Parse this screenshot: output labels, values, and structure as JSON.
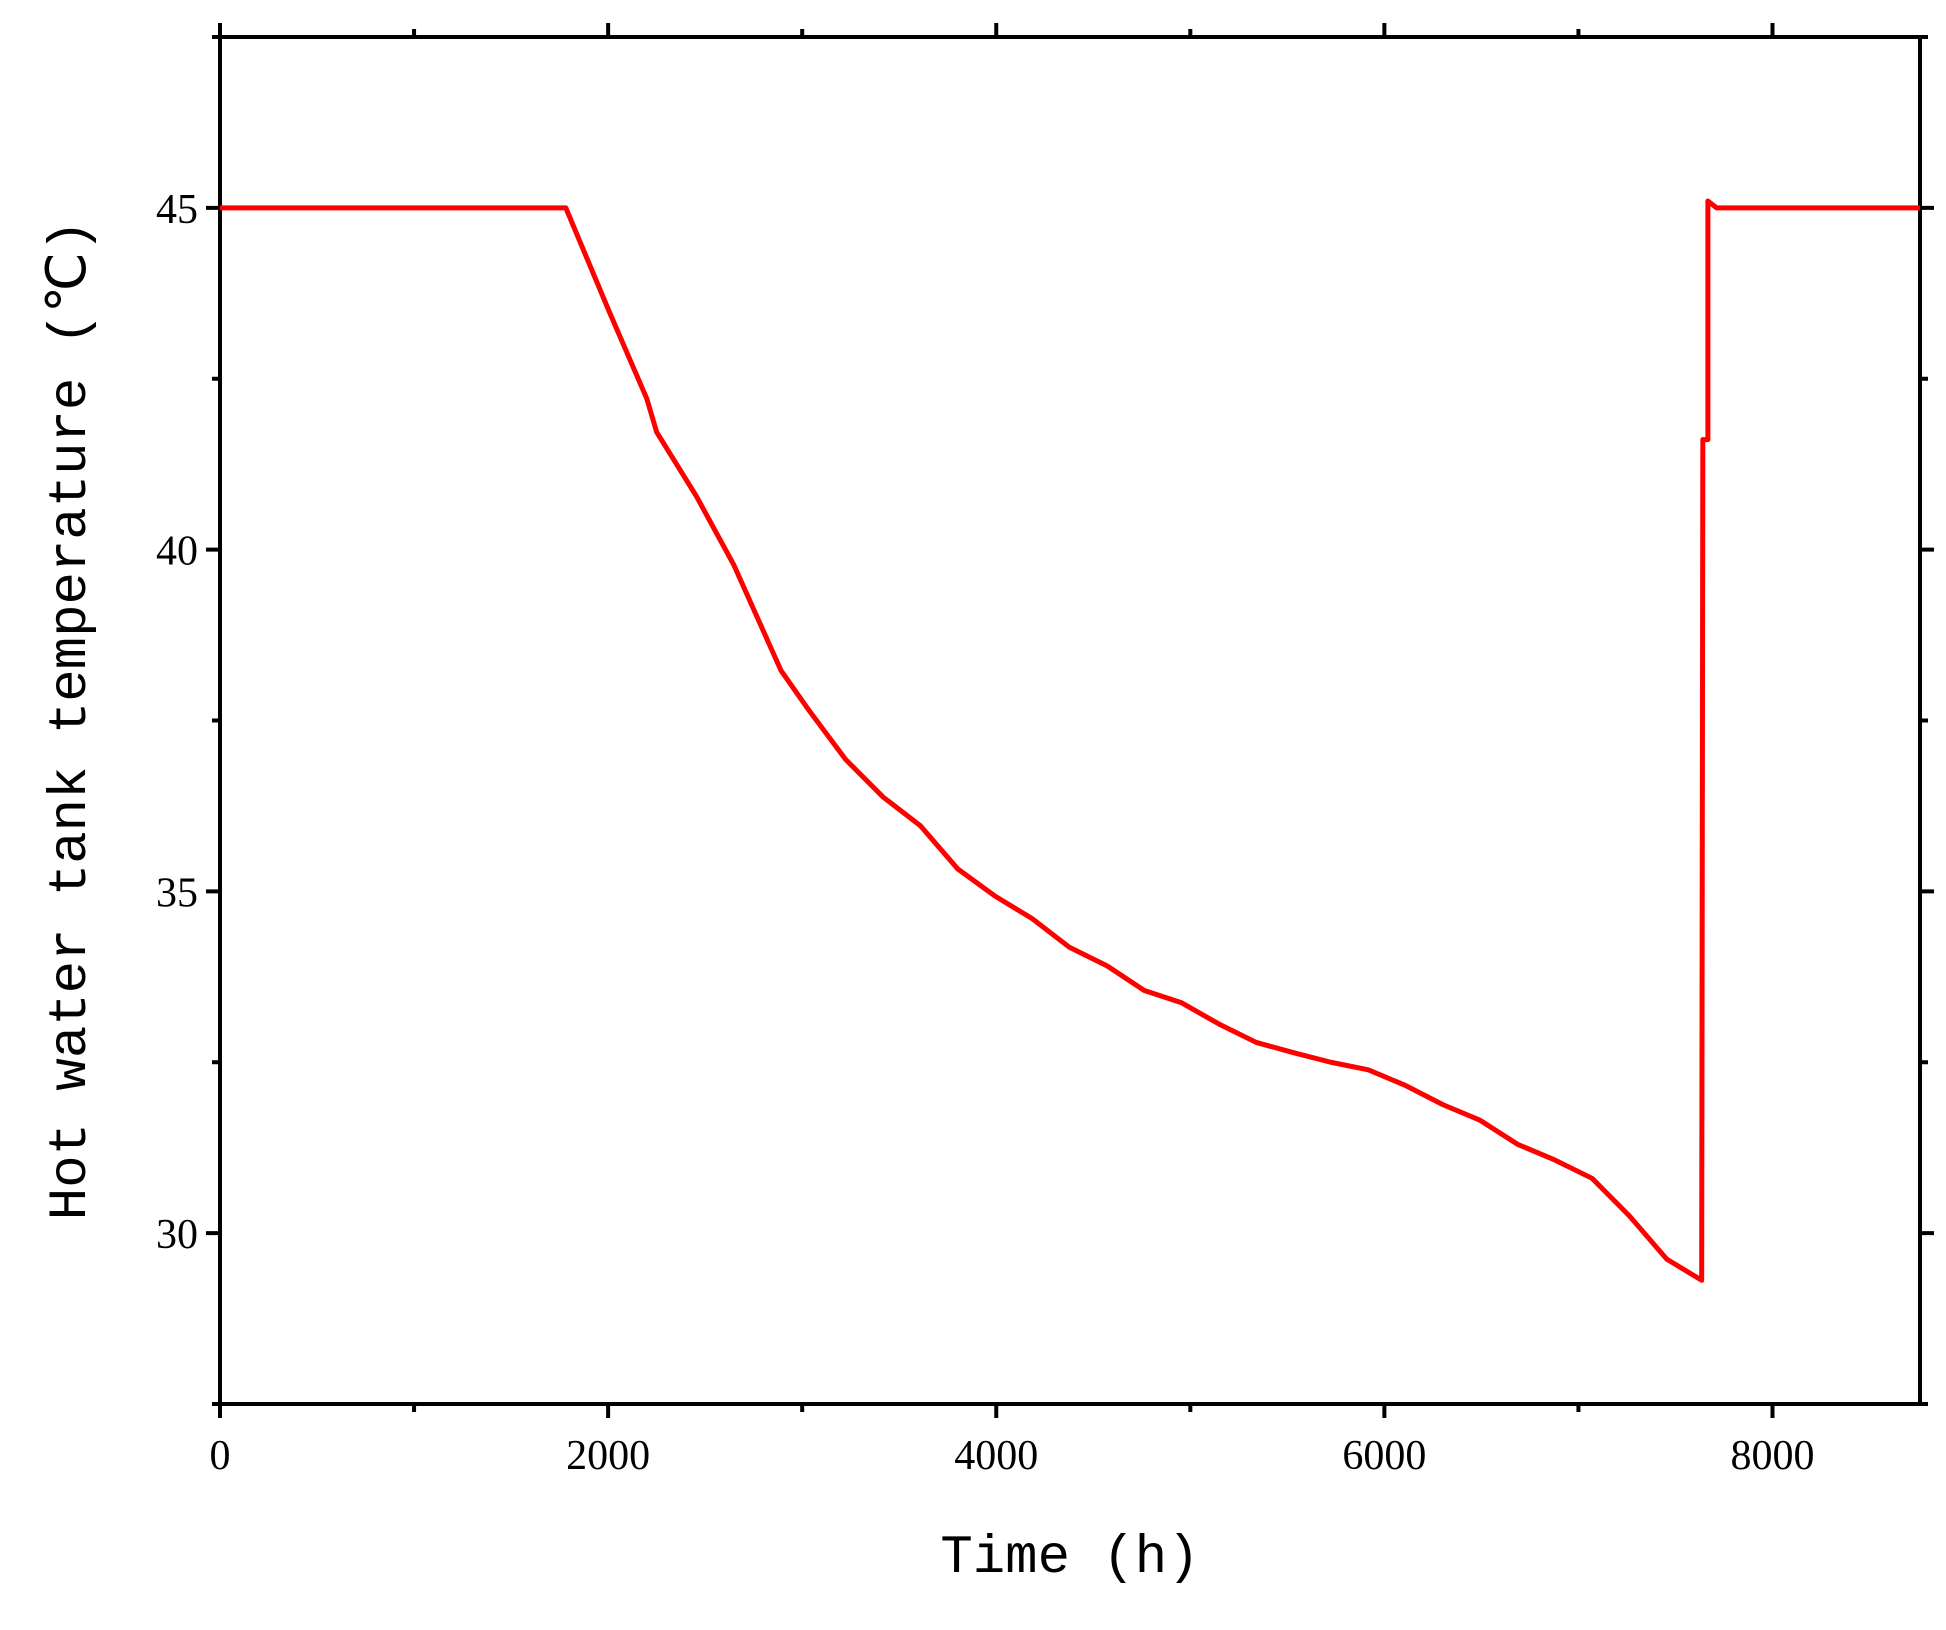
{
  "chart_data": {
    "type": "line",
    "x_label": "Time (h)",
    "y_label": "Hot water tank temperature (℃)",
    "color": "#ff0000",
    "x": [
      0,
      1782,
      2006,
      2199,
      2250,
      2455,
      2647,
      2891,
      3032,
      3224,
      3417,
      3609,
      3801,
      3994,
      4186,
      4378,
      4571,
      4763,
      4955,
      5147,
      5340,
      5532,
      5724,
      5917,
      6109,
      6301,
      6494,
      6686,
      6878,
      7071,
      7263,
      7455,
      7635,
      7641,
      7667,
      7667,
      7712,
      8760
    ],
    "values": [
      45,
      45,
      43.48,
      42.21,
      41.72,
      40.78,
      39.78,
      38.23,
      37.66,
      36.93,
      36.38,
      35.96,
      35.33,
      34.93,
      34.6,
      34.18,
      33.91,
      33.55,
      33.37,
      33.06,
      32.79,
      32.64,
      32.5,
      32.39,
      32.16,
      31.88,
      31.65,
      31.3,
      31.07,
      30.8,
      30.25,
      29.62,
      29.31,
      41.61,
      41.61,
      45.1,
      45,
      45
    ],
    "xlim": [
      0,
      8760
    ],
    "ylim": [
      27.5,
      47.5
    ],
    "xticks": [
      0,
      2000,
      4000,
      6000,
      8000
    ],
    "yticks": [
      30,
      35,
      40,
      45
    ],
    "x_minor_ticks": [
      1000,
      3000,
      5000,
      7000
    ],
    "y_minor_ticks": [
      27.5,
      32.5,
      37.5,
      42.5,
      47.5
    ],
    "mirror_ticks": true
  }
}
